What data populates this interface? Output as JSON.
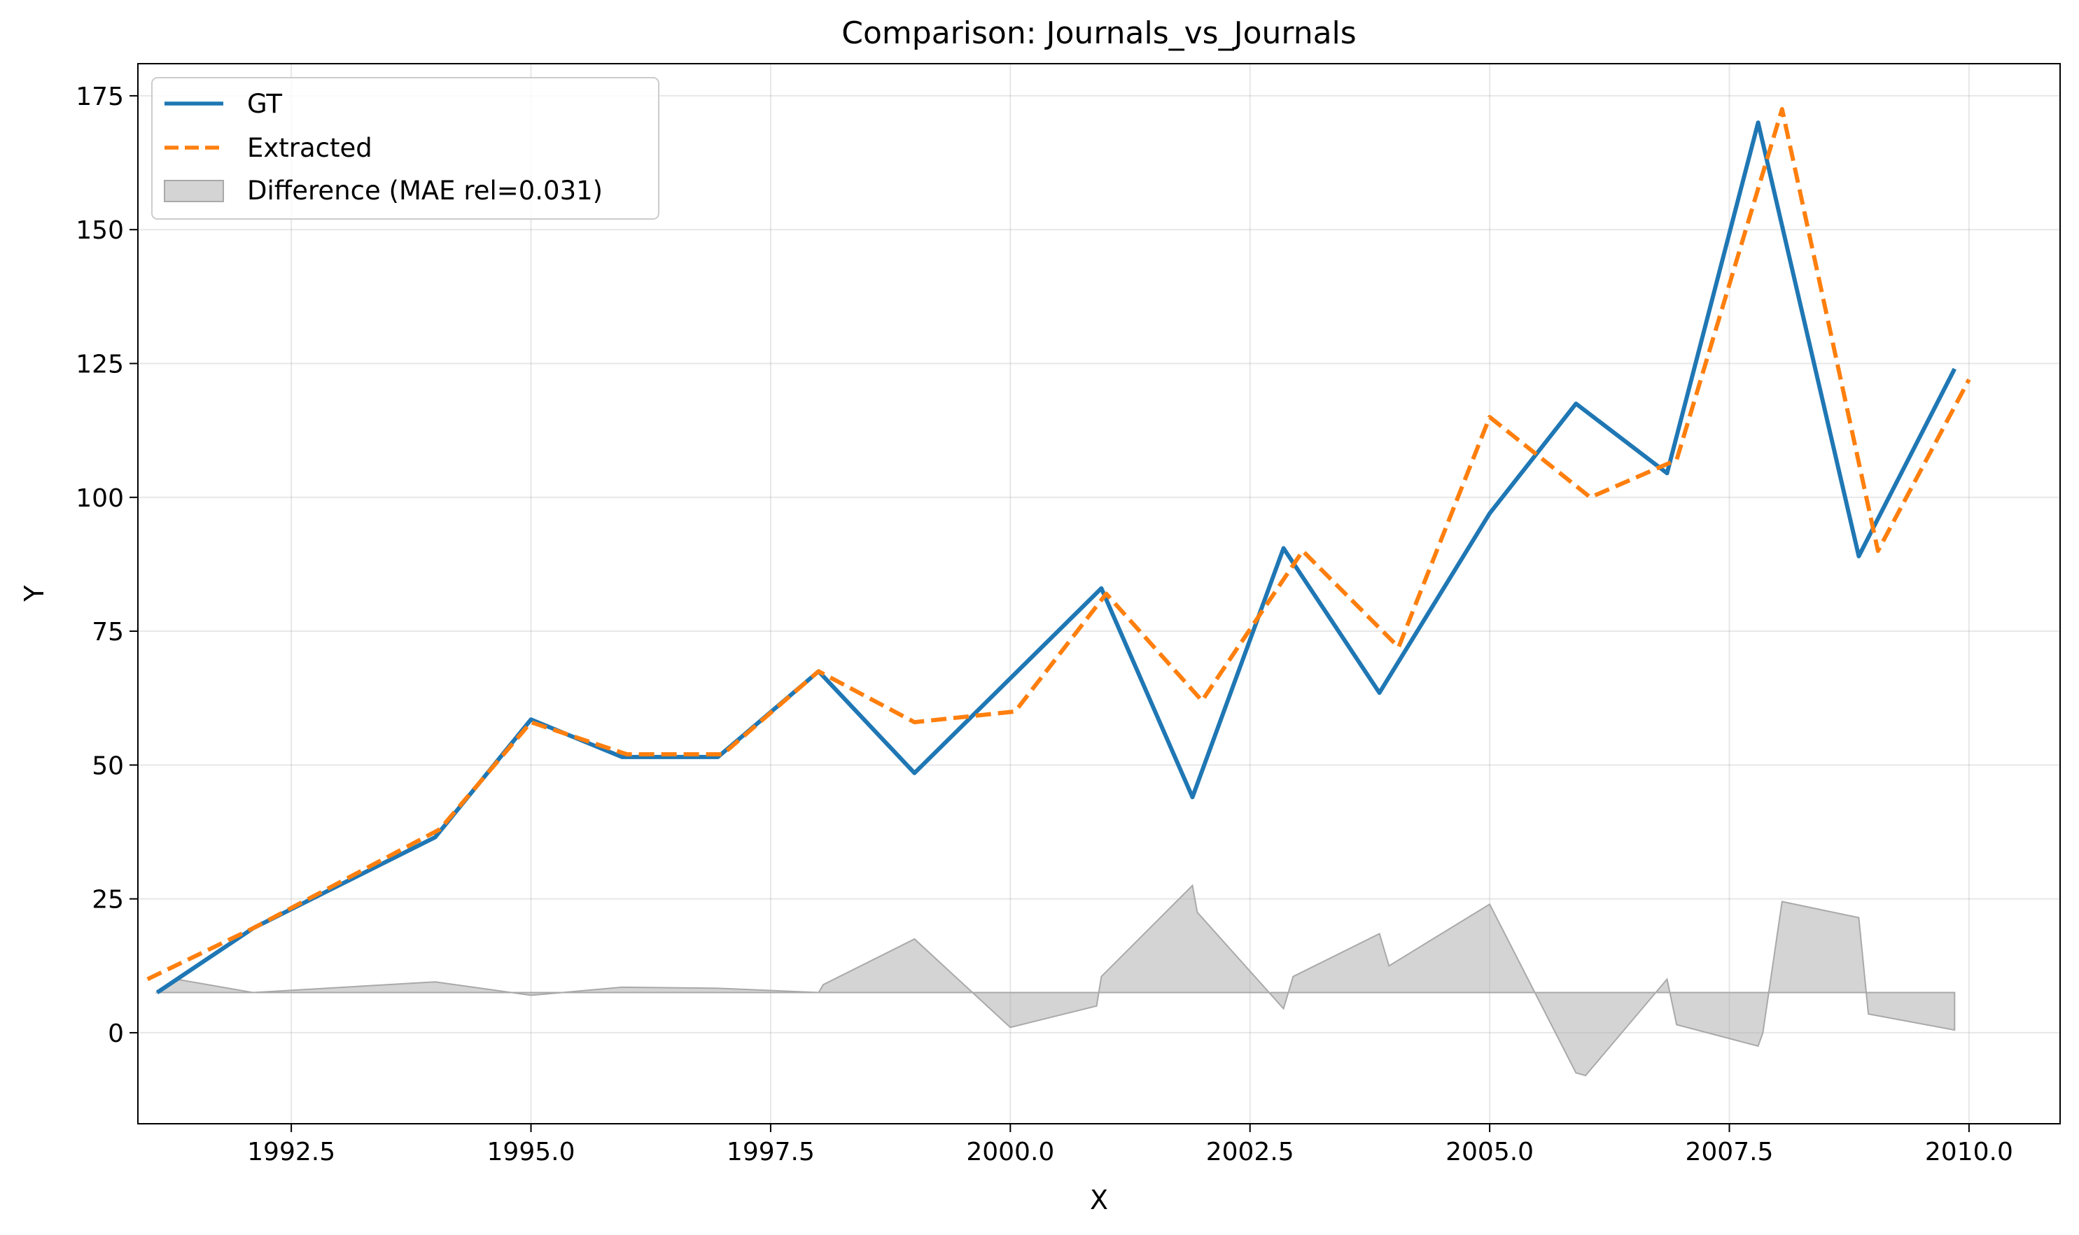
{
  "chart_data": {
    "type": "line",
    "title": "Comparison: Journals_vs_Journals",
    "xlabel": "X",
    "ylabel": "Y",
    "xlim": [
      1990.9,
      2010.95
    ],
    "ylim": [
      -17,
      181
    ],
    "xticks": [
      {
        "value": 1992.5,
        "label": "1992.5"
      },
      {
        "value": 1995.0,
        "label": "1995.0"
      },
      {
        "value": 1997.5,
        "label": "1997.5"
      },
      {
        "value": 2000.0,
        "label": "2000.0"
      },
      {
        "value": 2002.5,
        "label": "2002.5"
      },
      {
        "value": 2005.0,
        "label": "2005.0"
      },
      {
        "value": 2007.5,
        "label": "2007.5"
      },
      {
        "value": 2010.0,
        "label": "2010.0"
      }
    ],
    "yticks": [
      {
        "value": 0,
        "label": "0"
      },
      {
        "value": 25,
        "label": "25"
      },
      {
        "value": 50,
        "label": "50"
      },
      {
        "value": 75,
        "label": "75"
      },
      {
        "value": 100,
        "label": "100"
      },
      {
        "value": 125,
        "label": "125"
      },
      {
        "value": 150,
        "label": "150"
      },
      {
        "value": 175,
        "label": "175"
      }
    ],
    "grid": true,
    "legend_position": "upper-left",
    "series": [
      {
        "name": "GT",
        "color": "#1f77b4",
        "style": "solid",
        "x": [
          1991.1,
          1992.1,
          1994.0,
          1995.0,
          1995.95,
          1996.95,
          1998.0,
          1999.0,
          2000.95,
          2001.9,
          2002.85,
          2003.85,
          2005.0,
          2005.9,
          2006.85,
          2007.8,
          2008.85,
          2009.85
        ],
        "y": [
          7.5,
          19.5,
          36.5,
          58.5,
          51.5,
          51.5,
          67.5,
          48.5,
          83,
          44,
          90.5,
          63.5,
          97,
          117.5,
          104.5,
          170,
          89,
          124
        ]
      },
      {
        "name": "Extracted",
        "color": "#ff7f0e",
        "style": "dashed",
        "x": [
          1991.0,
          1992.1,
          1994.05,
          1995.0,
          1996.0,
          1997.0,
          1998.0,
          1999.0,
          2000.05,
          2001.0,
          2002.0,
          2003.05,
          2004.05,
          2005.0,
          2006.05,
          2006.95,
          2008.05,
          2009.05,
          2010.0
        ],
        "y": [
          10,
          19.5,
          38,
          58,
          52,
          52,
          67.5,
          58,
          60,
          82,
          62,
          90,
          72,
          115,
          100,
          107,
          172.5,
          90,
          122
        ]
      }
    ],
    "difference": {
      "name": "Difference (MAE rel=0.031)",
      "color": "#a9a9a9",
      "baseline": 7.5,
      "x": [
        1991.1,
        1991.3,
        1992.1,
        1994.0,
        1995.0,
        1995.95,
        1996.95,
        1998.0,
        1998.05,
        1999.0,
        2000.0,
        2000.9,
        2000.95,
        2001.9,
        2001.95,
        2002.85,
        2002.95,
        2003.85,
        2003.95,
        2005.0,
        2005.9,
        2006.0,
        2006.85,
        2006.95,
        2007.8,
        2007.85,
        2008.05,
        2008.85,
        2008.95,
        2009.85
      ],
      "y": [
        7.5,
        10,
        7.5,
        9.5,
        7,
        8.5,
        8.3,
        7.5,
        9,
        17.5,
        1,
        5,
        10.5,
        27.5,
        22.5,
        4.5,
        10.5,
        18.5,
        12.5,
        24,
        -7.5,
        -8,
        10,
        1.5,
        -2.5,
        0,
        24.5,
        21.5,
        3.5,
        0.5
      ]
    }
  }
}
